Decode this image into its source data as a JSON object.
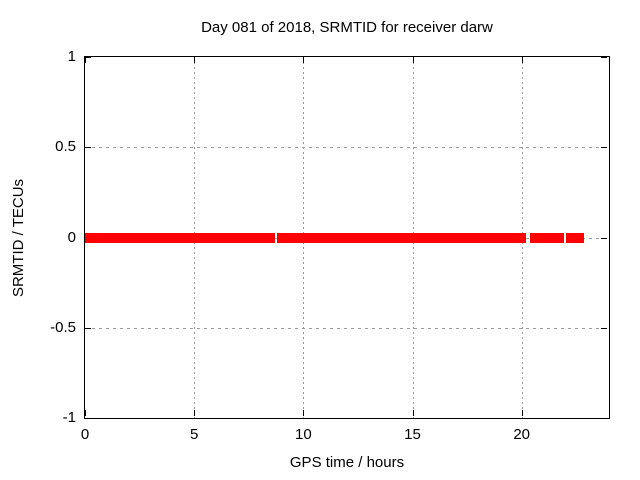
{
  "chart_data": {
    "type": "line",
    "title": "Day 081 of 2018, SRMTID for receiver darw",
    "xlabel": "GPS time / hours",
    "ylabel": "SRMTID / TECUs",
    "xlim": [
      0,
      24
    ],
    "ylim": [
      -1,
      1
    ],
    "xticks": [
      0,
      5,
      10,
      15,
      20
    ],
    "yticks": [
      1,
      0.5,
      0,
      -0.5,
      -1
    ],
    "grid_x": [
      5,
      10,
      15,
      20
    ],
    "grid_y": [
      0.5,
      0,
      -0.5
    ],
    "grid": true,
    "legend_position": "none",
    "grid_color": "#9b9b9b",
    "axis_color": "#000000",
    "background_color": "#ffffff",
    "series": [
      {
        "name": "SRMTID",
        "color": "#ff0000",
        "y_value": 0,
        "x_segments": [
          [
            0,
            8.71
          ],
          [
            8.81,
            20.21
          ],
          [
            20.4,
            21.95
          ],
          [
            22.05,
            22.86
          ]
        ]
      }
    ]
  }
}
